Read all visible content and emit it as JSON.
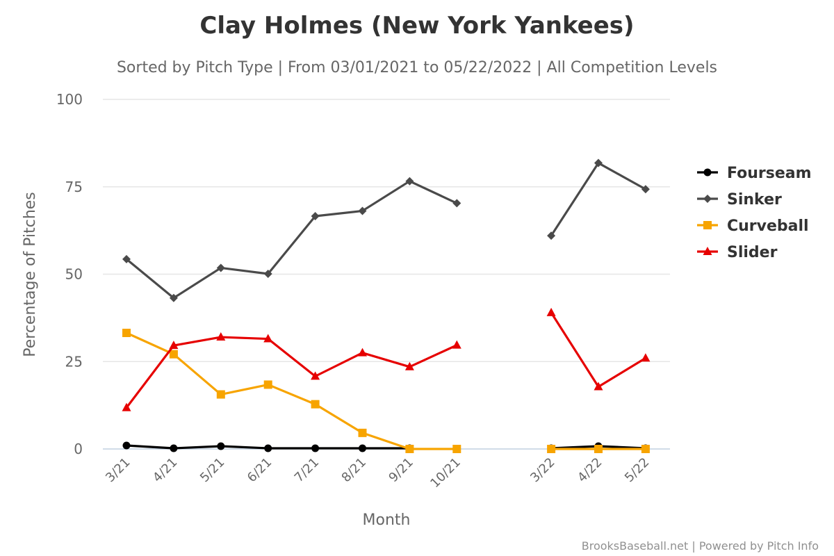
{
  "chart_data": {
    "type": "line",
    "title": "Clay Holmes (New York Yankees)",
    "subtitle": "Sorted by Pitch Type | From 03/01/2021 to 05/22/2022 | All Competition Levels",
    "xlabel": "Month",
    "ylabel": "Percentage of Pitches",
    "ylim": [
      0,
      100
    ],
    "yticks": [
      0,
      25,
      50,
      75,
      100
    ],
    "grid": true,
    "legend_position": "right",
    "categories": [
      "3/21",
      "4/21",
      "5/21",
      "6/21",
      "7/21",
      "8/21",
      "9/21",
      "10/21",
      "",
      "3/22",
      "4/22",
      "5/22"
    ],
    "series": [
      {
        "name": "Fourseam",
        "color": "#000000",
        "marker": "circle",
        "values": [
          1,
          0.2,
          0.8,
          0.2,
          0.2,
          0.2,
          0.2,
          null,
          null,
          0.2,
          0.8,
          0.2
        ]
      },
      {
        "name": "Sinker",
        "color": "#4a4a4a",
        "marker": "diamond",
        "values": [
          54.3,
          43.2,
          51.8,
          50.1,
          66.6,
          68.1,
          76.6,
          70.3,
          null,
          61,
          81.8,
          74.3
        ]
      },
      {
        "name": "Curveball",
        "color": "#f7a400",
        "marker": "square",
        "values": [
          33.2,
          27.1,
          15.6,
          18.4,
          12.8,
          4.6,
          0,
          0,
          null,
          0,
          0,
          0
        ]
      },
      {
        "name": "Slider",
        "color": "#e60000",
        "marker": "triangle",
        "values": [
          11.8,
          29.6,
          32,
          31.5,
          20.8,
          27.5,
          23.5,
          29.7,
          null,
          39,
          17.8,
          26
        ]
      }
    ]
  },
  "credits": "BrooksBaseball.net | Powered by Pitch Info"
}
